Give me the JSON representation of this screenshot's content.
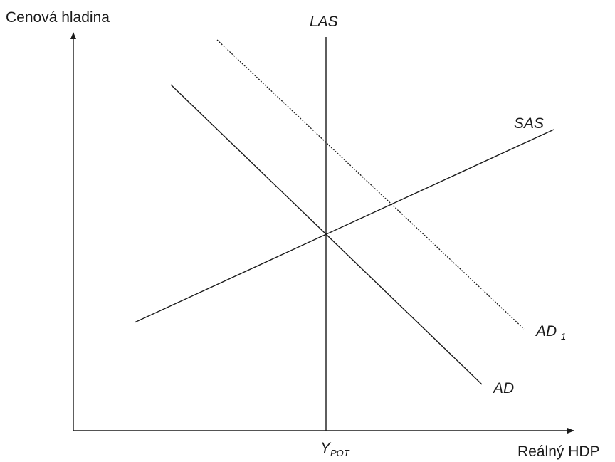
{
  "axes": {
    "y_label": "Cenová hladina",
    "x_label": "Reálný HDP",
    "x_marker_main": "Y",
    "x_marker_sub": "POT"
  },
  "curves": {
    "las": "LAS",
    "sas": "SAS",
    "ad": "AD",
    "ad1_main": "AD",
    "ad1_sub": "1"
  }
}
